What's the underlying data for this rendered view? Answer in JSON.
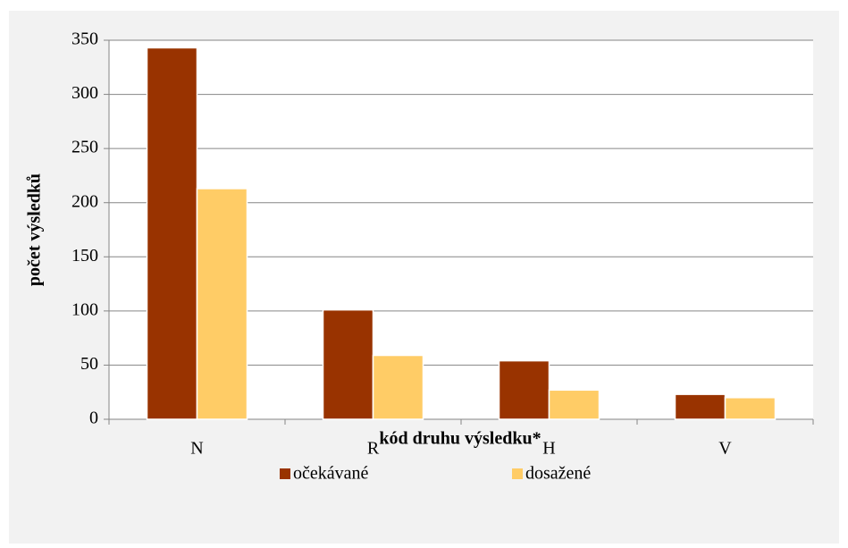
{
  "chart_data": {
    "type": "bar",
    "categories": [
      "N",
      "R",
      "H",
      "V"
    ],
    "series": [
      {
        "name": "očekávané",
        "color": "#993300",
        "values": [
          343,
          101,
          54,
          23
        ]
      },
      {
        "name": "dosažené",
        "color": "#ffcc66",
        "values": [
          213,
          59,
          27,
          20
        ]
      }
    ],
    "x_label": "kód druhu výsledku*",
    "y_label": "počet výsledků",
    "ylim": [
      0,
      350
    ],
    "yticks": [
      0,
      50,
      100,
      150,
      200,
      250,
      300,
      350
    ],
    "grid": true,
    "legend": "bottom"
  }
}
